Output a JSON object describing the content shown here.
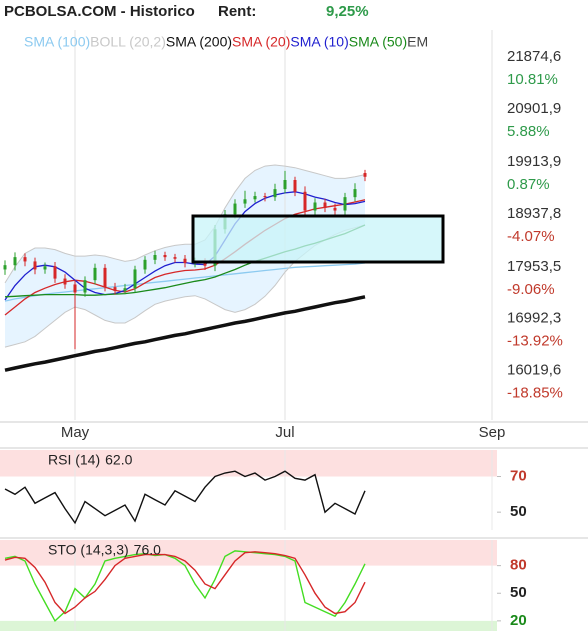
{
  "header": {
    "title": "PCBOLSA.COM - Historico",
    "rent_label": "Rent:",
    "rent": "9,25%"
  },
  "chart_data": [
    {
      "type": "candlestick",
      "x": [
        0,
        1,
        2,
        3,
        4,
        5,
        6,
        7,
        8,
        9,
        10,
        11,
        12,
        13,
        14,
        15,
        16,
        17,
        18,
        19,
        20,
        21,
        22,
        23,
        24,
        25,
        26,
        27,
        28,
        29,
        30,
        31,
        32,
        33,
        34,
        35,
        36
      ],
      "open": [
        18150,
        18230,
        18380,
        18300,
        18150,
        18210,
        17980,
        17870,
        17720,
        17950,
        18180,
        17820,
        17750,
        17800,
        18150,
        18330,
        18420,
        18380,
        18350,
        18270,
        18300,
        18220,
        18900,
        19180,
        19380,
        19460,
        19520,
        19500,
        19650,
        19820,
        19600,
        19250,
        19400,
        19300,
        19250,
        19500,
        19950
      ],
      "high": [
        18320,
        18470,
        18450,
        18370,
        18280,
        18290,
        18060,
        17950,
        18020,
        18260,
        18250,
        17900,
        17880,
        18220,
        18400,
        18500,
        18480,
        18440,
        18420,
        18370,
        18360,
        18980,
        19260,
        19460,
        19620,
        19600,
        19580,
        19750,
        19990,
        19880,
        19700,
        19480,
        19470,
        19380,
        19580,
        19760,
        20010
      ],
      "low": [
        18050,
        18130,
        18210,
        18060,
        18070,
        17900,
        17790,
        16660,
        17640,
        17870,
        17740,
        17680,
        17690,
        17720,
        18070,
        18250,
        18310,
        18280,
        18190,
        18190,
        18140,
        18120,
        18820,
        19100,
        19300,
        19400,
        19420,
        19430,
        19570,
        19520,
        19170,
        19170,
        19220,
        19170,
        19160,
        19420,
        19800
      ],
      "close": [
        18230,
        18380,
        18300,
        18150,
        18210,
        17980,
        17870,
        17720,
        17950,
        18180,
        17820,
        17750,
        17800,
        18150,
        18330,
        18420,
        18380,
        18350,
        18270,
        18300,
        18220,
        18900,
        19180,
        19380,
        19460,
        19520,
        19500,
        19650,
        19820,
        19600,
        19250,
        19400,
        19300,
        19250,
        19500,
        19650,
        19880
      ],
      "up_color": "#2ca02c",
      "down_color": "#d62728",
      "series": [
        {
          "name": "SMA (100)",
          "color": "#8ccaf0",
          "values": [
            17560,
            17600,
            17630,
            17660,
            17690,
            17710,
            17730,
            17750,
            17770,
            17790,
            17810,
            17830,
            17850,
            17870,
            17890,
            17910,
            17930,
            17950,
            17970,
            17990,
            18010,
            18030,
            18050,
            18070,
            18090,
            18110,
            18130,
            18150,
            18170,
            18190,
            18200,
            18210,
            18220,
            18230,
            18240,
            18250,
            18270
          ]
        },
        {
          "name": "BOLL (20,2)",
          "color": "#c8c8c8",
          "fill": "#dcefff",
          "upper": [
            17900,
            18200,
            18450,
            18550,
            18550,
            18520,
            18450,
            18400,
            18400,
            18420,
            18400,
            18350,
            18300,
            18330,
            18420,
            18500,
            18560,
            18600,
            18620,
            18620,
            18700,
            18950,
            19300,
            19600,
            19850,
            20000,
            20080,
            20100,
            20080,
            20050,
            20000,
            19950,
            19900,
            19850,
            19850,
            19880,
            19920
          ],
          "lower": [
            16700,
            16750,
            16800,
            16900,
            17050,
            17200,
            17350,
            17450,
            17400,
            17300,
            17200,
            17150,
            17150,
            17250,
            17380,
            17500,
            17560,
            17600,
            17640,
            17660,
            17600,
            17500,
            17400,
            17350,
            17400,
            17500,
            17650,
            17850,
            18100,
            18300,
            18450,
            18600,
            18700,
            18800,
            18880,
            18930,
            18980
          ]
        },
        {
          "name": "SMA (200)",
          "color": "#111111",
          "line_width": 3.5,
          "values": [
            16270,
            16310,
            16350,
            16390,
            16420,
            16460,
            16500,
            16540,
            16580,
            16620,
            16650,
            16690,
            16730,
            16770,
            16800,
            16840,
            16880,
            16920,
            16950,
            16990,
            17030,
            17070,
            17110,
            17150,
            17180,
            17220,
            17260,
            17300,
            17340,
            17370,
            17410,
            17450,
            17490,
            17530,
            17560,
            17600,
            17640
          ]
        },
        {
          "name": "SMA (20)",
          "color": "#d62728",
          "values": [
            17300,
            17450,
            17600,
            17720,
            17800,
            17870,
            17920,
            17950,
            17930,
            17880,
            17820,
            17760,
            17730,
            17790,
            17900,
            18000,
            18060,
            18100,
            18130,
            18140,
            18160,
            18230,
            18350,
            18480,
            18620,
            18750,
            18880,
            18990,
            19100,
            19180,
            19230,
            19280,
            19310,
            19340,
            19370,
            19410,
            19450
          ]
        },
        {
          "name": "SMA (10)",
          "color": "#1f1fcf",
          "values": [
            17580,
            17850,
            18050,
            18200,
            18230,
            18200,
            18100,
            17950,
            17800,
            17720,
            17680,
            17700,
            17760,
            17880,
            18000,
            18120,
            18220,
            18280,
            18280,
            18250,
            18240,
            18400,
            18700,
            19000,
            19230,
            19380,
            19480,
            19540,
            19580,
            19600,
            19560,
            19500,
            19460,
            19400,
            19360,
            19380,
            19420
          ]
        },
        {
          "name": "SMA (50)",
          "color": "#1a8a1a",
          "values": [
            17640,
            17650,
            17660,
            17670,
            17680,
            17680,
            17680,
            17680,
            17670,
            17670,
            17680,
            17690,
            17700,
            17720,
            17750,
            17780,
            17810,
            17850,
            17890,
            17930,
            17960,
            18010,
            18080,
            18150,
            18230,
            18300,
            18360,
            18420,
            18480,
            18530,
            18590,
            18640,
            18700,
            18760,
            18820,
            18900,
            18980
          ]
        }
      ],
      "legend_clipped": "EM",
      "xlim": [
        -0.5,
        49.2
      ],
      "xticks": [
        {
          "value": 7,
          "label": "May"
        },
        {
          "value": 28,
          "label": "Jul"
        },
        {
          "value": 48.7,
          "label": "Sep"
        }
      ],
      "ylim": [
        15340,
        22620
      ],
      "yticks": [
        {
          "value": 21874.6,
          "label": "21874,6"
        },
        {
          "value": 20901.9,
          "label": "20901,9"
        },
        {
          "value": 19913.9,
          "label": "19913,9"
        },
        {
          "value": 18937.8,
          "label": "18937,8"
        },
        {
          "value": 17953.5,
          "label": "17953,5"
        },
        {
          "value": 16992.3,
          "label": "16992,3"
        },
        {
          "value": 16019.6,
          "label": "16019,6"
        }
      ],
      "y2lim": [
        -22.3,
        14.58
      ],
      "y2ticks": [
        {
          "value": 10.81,
          "label": "10.81%"
        },
        {
          "value": 5.88,
          "label": "5.88%"
        },
        {
          "value": 0.87,
          "label": "0.87%"
        },
        {
          "value": -4.07,
          "label": "-4.07%"
        },
        {
          "value": -9.06,
          "label": "-9.06%"
        },
        {
          "value": -13.92,
          "label": "-13.92%"
        },
        {
          "value": -18.85,
          "label": "-18.85%"
        }
      ],
      "grid": true
    },
    {
      "type": "line",
      "title": "RSI (14)",
      "readout": {
        "value": 62,
        "label": "62.0"
      },
      "x": [
        0,
        1,
        2,
        3,
        4,
        5,
        6,
        7,
        8,
        9,
        10,
        11,
        12,
        13,
        14,
        15,
        16,
        17,
        18,
        19,
        20,
        21,
        22,
        23,
        24,
        25,
        26,
        27,
        28,
        29,
        30,
        31,
        32,
        33,
        34,
        35,
        36
      ],
      "series": [
        {
          "color": "#111111",
          "values": [
            63,
            60,
            64,
            55,
            58,
            61,
            52,
            44,
            56,
            52,
            48,
            51,
            54,
            45,
            60,
            57,
            54,
            62,
            59,
            56,
            64,
            70,
            72,
            73,
            70,
            72,
            68,
            70,
            73,
            69,
            68,
            71,
            50,
            55,
            52,
            49,
            62
          ]
        }
      ],
      "xlim": [
        -0.5,
        49.2
      ],
      "ylim": [
        40,
        86
      ],
      "yticks": [
        70,
        50
      ],
      "ytick_colors": [
        "#c0392b",
        "#222222"
      ],
      "shade_above_top_tick": "#fde0e0"
    },
    {
      "type": "line",
      "title": "STO (14,3,3)",
      "readout": {
        "value": 76,
        "label": "76.0"
      },
      "x": [
        0,
        1,
        2,
        3,
        4,
        5,
        6,
        7,
        8,
        9,
        10,
        11,
        12,
        13,
        14,
        15,
        16,
        17,
        18,
        19,
        20,
        21,
        22,
        23,
        24,
        25,
        26,
        27,
        28,
        29,
        30,
        31,
        32,
        33,
        34,
        35,
        36
      ],
      "series": [
        {
          "color": "#44dd22",
          "values": [
            88,
            90,
            85,
            60,
            40,
            20,
            30,
            55,
            45,
            60,
            85,
            88,
            90,
            92,
            93,
            91,
            92,
            88,
            80,
            60,
            45,
            65,
            90,
            96,
            95,
            94,
            93,
            92,
            90,
            85,
            40,
            35,
            30,
            25,
            40,
            60,
            82
          ]
        },
        {
          "color": "#d62728",
          "values": [
            86,
            89,
            88,
            78,
            62,
            40,
            28,
            35,
            45,
            52,
            65,
            80,
            88,
            90,
            92,
            92,
            92,
            90,
            85,
            75,
            60,
            55,
            70,
            85,
            94,
            95,
            94,
            93,
            91,
            88,
            70,
            50,
            35,
            28,
            30,
            40,
            62
          ]
        }
      ],
      "xlim": [
        -0.5,
        49.2
      ],
      "ylim": [
        9,
        110
      ],
      "yticks": [
        80,
        50,
        20
      ],
      "ytick_colors": [
        "#c0392b",
        "#222222",
        "#1a8a1a"
      ],
      "shade_above_top_tick": "#fde0e0",
      "shade_below_bottom_tick": "#dcf5d6"
    }
  ]
}
